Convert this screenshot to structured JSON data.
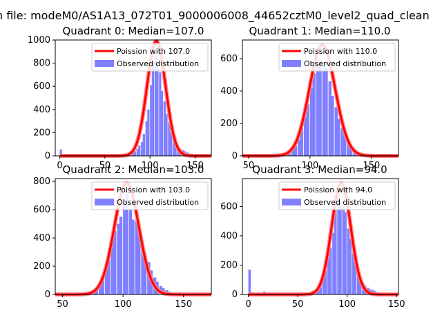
{
  "figure": {
    "suptitle": "n file: modeM0/AS1A13_072T01_9000006008_44652cztM0_level2_quad_clean"
  },
  "colors": {
    "histogram": "#8080ff",
    "poisson_line": "#ff0000",
    "poisson_halo": "#ff8080"
  },
  "chart_data": [
    {
      "type": "bar",
      "title": "Quadrant 0: Median=107.0",
      "xlim": [
        -5,
        168
      ],
      "ylim": [
        0,
        1000
      ],
      "xticks": [
        0,
        50,
        100,
        150
      ],
      "yticks": [
        0,
        200,
        400,
        600,
        800,
        1000
      ],
      "legend": {
        "placement": "top-right",
        "entries": [
          "Poission with 107.0",
          "Observed distribution"
        ]
      },
      "poisson_mean": 107.0,
      "poisson_peak": 990,
      "histogram": {
        "bin_width": 2.5,
        "bins": [
          [
            0,
            55
          ],
          [
            2.5,
            10
          ],
          [
            40,
            2
          ],
          [
            50,
            2
          ],
          [
            62,
            3
          ],
          [
            67,
            8
          ],
          [
            70,
            15
          ],
          [
            72,
            12
          ],
          [
            75,
            20
          ],
          [
            77,
            22
          ],
          [
            80,
            35
          ],
          [
            82,
            40
          ],
          [
            85,
            60
          ],
          [
            87,
            90
          ],
          [
            90,
            120
          ],
          [
            92,
            190
          ],
          [
            95,
            300
          ],
          [
            97,
            400
          ],
          [
            100,
            610
          ],
          [
            102,
            800
          ],
          [
            105,
            880
          ],
          [
            107,
            820
          ],
          [
            110,
            720
          ],
          [
            112,
            560
          ],
          [
            115,
            470
          ],
          [
            117,
            360
          ],
          [
            120,
            290
          ],
          [
            122,
            200
          ],
          [
            125,
            150
          ],
          [
            127,
            110
          ],
          [
            130,
            80
          ],
          [
            132,
            60
          ],
          [
            135,
            50
          ],
          [
            137,
            40
          ],
          [
            140,
            30
          ],
          [
            142,
            20
          ],
          [
            145,
            15
          ],
          [
            147,
            12
          ],
          [
            150,
            8
          ],
          [
            152,
            6
          ],
          [
            155,
            4
          ],
          [
            157,
            3
          ]
        ]
      }
    },
    {
      "type": "bar",
      "title": "Quadrant 1: Median=110.0",
      "xlim": [
        45,
        172
      ],
      "ylim": [
        0,
        715
      ],
      "xticks": [
        50,
        100,
        150
      ],
      "yticks": [
        0,
        200,
        400,
        600
      ],
      "legend": {
        "placement": "top-right",
        "entries": [
          "Poission with 110.0",
          "Observed distribution"
        ]
      },
      "poisson_mean": 110.0,
      "poisson_peak": 685,
      "histogram": {
        "bin_width": 2.5,
        "bins": [
          [
            75,
            5
          ],
          [
            78,
            8
          ],
          [
            80,
            15
          ],
          [
            82,
            25
          ],
          [
            85,
            40
          ],
          [
            87,
            60
          ],
          [
            90,
            100
          ],
          [
            92,
            170
          ],
          [
            95,
            240
          ],
          [
            97,
            320
          ],
          [
            100,
            420
          ],
          [
            102,
            510
          ],
          [
            105,
            560
          ],
          [
            107,
            600
          ],
          [
            110,
            560
          ],
          [
            112,
            540
          ],
          [
            115,
            460
          ],
          [
            117,
            370
          ],
          [
            120,
            300
          ],
          [
            122,
            230
          ],
          [
            125,
            170
          ],
          [
            127,
            120
          ],
          [
            130,
            80
          ],
          [
            132,
            55
          ],
          [
            135,
            40
          ],
          [
            137,
            25
          ],
          [
            140,
            15
          ],
          [
            142,
            10
          ],
          [
            145,
            6
          ],
          [
            147,
            4
          ]
        ]
      }
    },
    {
      "type": "bar",
      "title": "Quadrant 2: Median=103.0",
      "xlim": [
        44,
        173
      ],
      "ylim": [
        0,
        820
      ],
      "xticks": [
        50,
        100,
        150
      ],
      "yticks": [
        0,
        200,
        400,
        600,
        800
      ],
      "legend": {
        "placement": "top-right",
        "entries": [
          "Poission with 103.0",
          "Observed distribution"
        ]
      },
      "poisson_mean": 103.0,
      "poisson_peak": 790,
      "histogram": {
        "bin_width": 2.5,
        "bins": [
          [
            65,
            3
          ],
          [
            70,
            5
          ],
          [
            72,
            10
          ],
          [
            75,
            20
          ],
          [
            77,
            40
          ],
          [
            80,
            70
          ],
          [
            82,
            110
          ],
          [
            85,
            180
          ],
          [
            87,
            260
          ],
          [
            90,
            380
          ],
          [
            92,
            450
          ],
          [
            95,
            500
          ],
          [
            97,
            550
          ],
          [
            100,
            650
          ],
          [
            102,
            720
          ],
          [
            105,
            600
          ],
          [
            107,
            530
          ],
          [
            110,
            520
          ],
          [
            112,
            430
          ],
          [
            115,
            380
          ],
          [
            117,
            290
          ],
          [
            120,
            230
          ],
          [
            122,
            170
          ],
          [
            125,
            120
          ],
          [
            127,
            90
          ],
          [
            130,
            60
          ],
          [
            132,
            45
          ],
          [
            135,
            30
          ],
          [
            137,
            20
          ],
          [
            140,
            12
          ],
          [
            142,
            8
          ],
          [
            145,
            5
          ],
          [
            147,
            3
          ]
        ]
      }
    },
    {
      "type": "bar",
      "title": "Quadrant 3: Median=94.0",
      "xlim": [
        -6,
        152
      ],
      "ylim": [
        0,
        790
      ],
      "xticks": [
        0,
        50,
        100,
        150
      ],
      "yticks": [
        0,
        200,
        400,
        600
      ],
      "legend": {
        "placement": "top-right",
        "entries": [
          "Poission with 94.0",
          "Observed distribution"
        ]
      },
      "poisson_mean": 94.0,
      "poisson_peak": 760,
      "histogram": {
        "bin_width": 2.5,
        "bins": [
          [
            0,
            170
          ],
          [
            2.5,
            15
          ],
          [
            15,
            20
          ],
          [
            40,
            2
          ],
          [
            55,
            3
          ],
          [
            60,
            5
          ],
          [
            63,
            8
          ],
          [
            65,
            12
          ],
          [
            68,
            20
          ],
          [
            70,
            40
          ],
          [
            72,
            70
          ],
          [
            75,
            110
          ],
          [
            77,
            170
          ],
          [
            80,
            250
          ],
          [
            82,
            320
          ],
          [
            85,
            420
          ],
          [
            87,
            600
          ],
          [
            90,
            700
          ],
          [
            92,
            600
          ],
          [
            95,
            620
          ],
          [
            97,
            560
          ],
          [
            100,
            450
          ],
          [
            102,
            380
          ],
          [
            105,
            280
          ],
          [
            107,
            220
          ],
          [
            110,
            160
          ],
          [
            112,
            110
          ],
          [
            115,
            80
          ],
          [
            117,
            60
          ],
          [
            120,
            45
          ],
          [
            122,
            35
          ],
          [
            125,
            30
          ],
          [
            127,
            22
          ],
          [
            130,
            15
          ],
          [
            132,
            10
          ],
          [
            135,
            8
          ],
          [
            137,
            6
          ],
          [
            140,
            4
          ]
        ]
      }
    }
  ]
}
